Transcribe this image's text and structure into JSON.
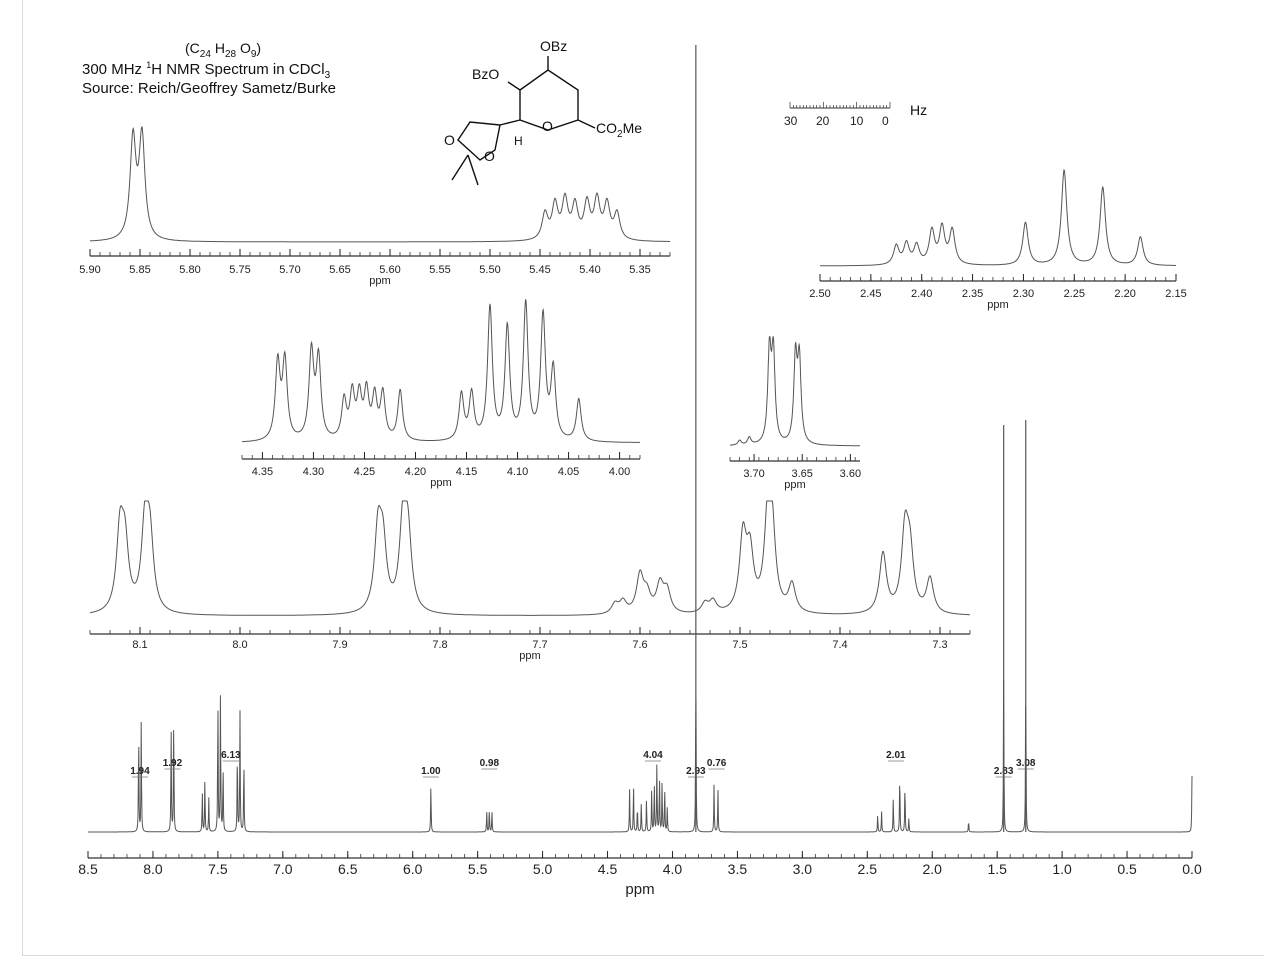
{
  "header": {
    "formula_base": [
      "C",
      "H",
      "O"
    ],
    "formula_subs": [
      "24",
      "28",
      "9"
    ],
    "line1_prefix": "300 MHz ",
    "line1_super": "1",
    "line1_rest": "H NMR Spectrum in CDCl",
    "line1_sub": "3",
    "line2": "Source: Reich/Geoffrey Sametz/Burke"
  },
  "molecule": {
    "labels": [
      "OBz",
      "BzO",
      "O",
      "CO",
      "Me",
      "H",
      "O",
      "O"
    ],
    "co2_sub": "2"
  },
  "hz_scale": {
    "unit": "Hz",
    "ticks": [
      "30",
      "20",
      "10",
      "0"
    ]
  },
  "chart_data": [
    {
      "id": "main",
      "type": "line",
      "xlabel": "ppm",
      "xlim": [
        8.5,
        0.0
      ],
      "x_reversed": true,
      "tick_labels": [
        "8.5",
        "8.0",
        "7.5",
        "7.0",
        "6.5",
        "6.0",
        "5.5",
        "5.0",
        "4.5",
        "4.0",
        "3.5",
        "3.0",
        "2.5",
        "2.0",
        "1.5",
        "1.0",
        "0.5",
        "0.0"
      ],
      "peaks": [
        {
          "ppm": 8.11,
          "h": 0.62
        },
        {
          "ppm": 8.09,
          "h": 0.66
        },
        {
          "ppm": 7.86,
          "h": 0.62
        },
        {
          "ppm": 7.84,
          "h": 0.7
        },
        {
          "ppm": 7.62,
          "h": 0.25
        },
        {
          "ppm": 7.6,
          "h": 0.32
        },
        {
          "ppm": 7.57,
          "h": 0.2
        },
        {
          "ppm": 7.5,
          "h": 0.82
        },
        {
          "ppm": 7.48,
          "h": 0.85
        },
        {
          "ppm": 7.46,
          "h": 0.4
        },
        {
          "ppm": 7.35,
          "h": 0.5
        },
        {
          "ppm": 7.33,
          "h": 0.72
        },
        {
          "ppm": 7.3,
          "h": 0.45
        },
        {
          "ppm": 5.86,
          "h": 0.28
        },
        {
          "ppm": 5.43,
          "h": 0.12
        },
        {
          "ppm": 5.41,
          "h": 0.14
        },
        {
          "ppm": 5.39,
          "h": 0.12
        },
        {
          "ppm": 4.33,
          "h": 0.25
        },
        {
          "ppm": 4.3,
          "h": 0.28
        },
        {
          "ppm": 4.27,
          "h": 0.16
        },
        {
          "ppm": 4.24,
          "h": 0.18
        },
        {
          "ppm": 4.2,
          "h": 0.2
        },
        {
          "ppm": 4.16,
          "h": 0.26
        },
        {
          "ppm": 4.14,
          "h": 0.3
        },
        {
          "ppm": 4.12,
          "h": 0.42
        },
        {
          "ppm": 4.1,
          "h": 0.34
        },
        {
          "ppm": 4.08,
          "h": 0.3
        },
        {
          "ppm": 4.06,
          "h": 0.27
        },
        {
          "ppm": 4.04,
          "h": 0.15
        },
        {
          "ppm": 3.82,
          "h": 1.0
        },
        {
          "ppm": 3.68,
          "h": 0.28
        },
        {
          "ppm": 3.65,
          "h": 0.26
        },
        {
          "ppm": 2.42,
          "h": 0.1
        },
        {
          "ppm": 2.39,
          "h": 0.12
        },
        {
          "ppm": 2.3,
          "h": 0.2
        },
        {
          "ppm": 2.25,
          "h": 0.36
        },
        {
          "ppm": 2.21,
          "h": 0.3
        },
        {
          "ppm": 2.18,
          "h": 0.08
        },
        {
          "ppm": 1.72,
          "h": 0.07
        },
        {
          "ppm": 1.45,
          "h": 0.95
        },
        {
          "ppm": 1.28,
          "h": 0.95
        },
        {
          "ppm": 0.0,
          "h": 0.33
        }
      ],
      "integrals": [
        {
          "ppm": 8.1,
          "value": "1.94"
        },
        {
          "ppm": 7.85,
          "value": "1.92"
        },
        {
          "ppm": 7.4,
          "value": "6.13"
        },
        {
          "ppm": 5.86,
          "value": "1.00"
        },
        {
          "ppm": 5.41,
          "value": "0.98"
        },
        {
          "ppm": 4.15,
          "value": "4.04"
        },
        {
          "ppm": 3.82,
          "value": "2.93"
        },
        {
          "ppm": 3.66,
          "value": "0.76"
        },
        {
          "ppm": 2.28,
          "value": "2.01"
        },
        {
          "ppm": 1.45,
          "value": "2.83"
        },
        {
          "ppm": 1.28,
          "value": "3.08"
        }
      ]
    },
    {
      "id": "inset-5.9-5.35",
      "type": "line",
      "xlabel": "ppm",
      "xlim": [
        5.9,
        5.32
      ],
      "tick_labels": [
        "5.90",
        "5.85",
        "5.80",
        "5.75",
        "5.70",
        "5.65",
        "5.60",
        "5.55",
        "5.50",
        "5.45",
        "5.40",
        "5.35"
      ],
      "peaks": [
        {
          "ppm": 5.857,
          "h": 0.95
        },
        {
          "ppm": 5.848,
          "h": 0.97
        },
        {
          "ppm": 5.445,
          "h": 0.25
        },
        {
          "ppm": 5.435,
          "h": 0.33
        },
        {
          "ppm": 5.425,
          "h": 0.37
        },
        {
          "ppm": 5.415,
          "h": 0.32
        },
        {
          "ppm": 5.403,
          "h": 0.34
        },
        {
          "ppm": 5.393,
          "h": 0.37
        },
        {
          "ppm": 5.383,
          "h": 0.33
        },
        {
          "ppm": 5.373,
          "h": 0.25
        }
      ]
    },
    {
      "id": "inset-2.5-2.15",
      "type": "line",
      "xlabel": "ppm",
      "xlim": [
        2.5,
        2.15
      ],
      "tick_labels": [
        "2.50",
        "2.45",
        "2.40",
        "2.35",
        "2.30",
        "2.25",
        "2.20",
        "2.15"
      ],
      "peaks": [
        {
          "ppm": 2.425,
          "h": 0.2
        },
        {
          "ppm": 2.415,
          "h": 0.22
        },
        {
          "ppm": 2.405,
          "h": 0.2
        },
        {
          "ppm": 2.39,
          "h": 0.35
        },
        {
          "ppm": 2.38,
          "h": 0.38
        },
        {
          "ppm": 2.37,
          "h": 0.36
        },
        {
          "ppm": 2.298,
          "h": 0.45
        },
        {
          "ppm": 2.26,
          "h": 1.0
        },
        {
          "ppm": 2.222,
          "h": 0.82
        },
        {
          "ppm": 2.185,
          "h": 0.3
        }
      ]
    },
    {
      "id": "inset-4.37-4.0",
      "type": "line",
      "xlabel": "ppm",
      "xlim": [
        4.37,
        3.98
      ],
      "tick_labels": [
        "4.35",
        "4.30",
        "4.25",
        "4.20",
        "4.15",
        "4.10",
        "4.05",
        "4.00"
      ],
      "peaks": [
        {
          "ppm": 4.335,
          "h": 0.55
        },
        {
          "ppm": 4.328,
          "h": 0.56
        },
        {
          "ppm": 4.302,
          "h": 0.62
        },
        {
          "ppm": 4.295,
          "h": 0.57
        },
        {
          "ppm": 4.27,
          "h": 0.28
        },
        {
          "ppm": 4.262,
          "h": 0.32
        },
        {
          "ppm": 4.255,
          "h": 0.3
        },
        {
          "ppm": 4.248,
          "h": 0.33
        },
        {
          "ppm": 4.24,
          "h": 0.3
        },
        {
          "ppm": 4.232,
          "h": 0.33
        },
        {
          "ppm": 4.215,
          "h": 0.36
        },
        {
          "ppm": 4.155,
          "h": 0.33
        },
        {
          "ppm": 4.145,
          "h": 0.33
        },
        {
          "ppm": 4.127,
          "h": 0.95
        },
        {
          "ppm": 4.11,
          "h": 0.8
        },
        {
          "ppm": 4.092,
          "h": 0.97
        },
        {
          "ppm": 4.075,
          "h": 0.88
        },
        {
          "ppm": 4.065,
          "h": 0.5
        },
        {
          "ppm": 4.04,
          "h": 0.3
        }
      ]
    },
    {
      "id": "inset-3.72-3.6",
      "type": "line",
      "xlabel": "ppm",
      "xlim": [
        3.725,
        3.59
      ],
      "tick_labels": [
        "3.70",
        "3.65",
        "3.60"
      ],
      "peaks": [
        {
          "ppm": 3.715,
          "h": 0.05
        },
        {
          "ppm": 3.705,
          "h": 0.08
        },
        {
          "ppm": 3.684,
          "h": 0.95
        },
        {
          "ppm": 3.68,
          "h": 0.93
        },
        {
          "ppm": 3.657,
          "h": 0.88
        },
        {
          "ppm": 3.653,
          "h": 0.86
        }
      ]
    },
    {
      "id": "inset-aromatic",
      "type": "line",
      "xlabel": "ppm",
      "xlim": [
        8.15,
        7.27
      ],
      "tick_labels": [
        "8.1",
        "8.0",
        "7.9",
        "7.8",
        "7.7",
        "7.6",
        "7.5",
        "7.4",
        "7.3"
      ],
      "peaks": [
        {
          "ppm": 8.12,
          "h": 0.78
        },
        {
          "ppm": 8.115,
          "h": 0.62
        },
        {
          "ppm": 8.095,
          "h": 0.85
        },
        {
          "ppm": 8.09,
          "h": 0.68
        },
        {
          "ppm": 7.862,
          "h": 0.78
        },
        {
          "ppm": 7.857,
          "h": 0.62
        },
        {
          "ppm": 7.837,
          "h": 0.87
        },
        {
          "ppm": 7.832,
          "h": 0.7
        },
        {
          "ppm": 7.625,
          "h": 0.1
        },
        {
          "ppm": 7.617,
          "h": 0.12
        },
        {
          "ppm": 7.6,
          "h": 0.38
        },
        {
          "ppm": 7.593,
          "h": 0.18
        },
        {
          "ppm": 7.58,
          "h": 0.28
        },
        {
          "ppm": 7.573,
          "h": 0.22
        },
        {
          "ppm": 7.535,
          "h": 0.1
        },
        {
          "ppm": 7.527,
          "h": 0.12
        },
        {
          "ppm": 7.497,
          "h": 0.74
        },
        {
          "ppm": 7.49,
          "h": 0.55
        },
        {
          "ppm": 7.472,
          "h": 0.9
        },
        {
          "ppm": 7.468,
          "h": 0.7
        },
        {
          "ppm": 7.448,
          "h": 0.28
        },
        {
          "ppm": 7.357,
          "h": 0.6
        },
        {
          "ppm": 7.335,
          "h": 0.78
        },
        {
          "ppm": 7.33,
          "h": 0.55
        },
        {
          "ppm": 7.31,
          "h": 0.35
        }
      ]
    }
  ]
}
